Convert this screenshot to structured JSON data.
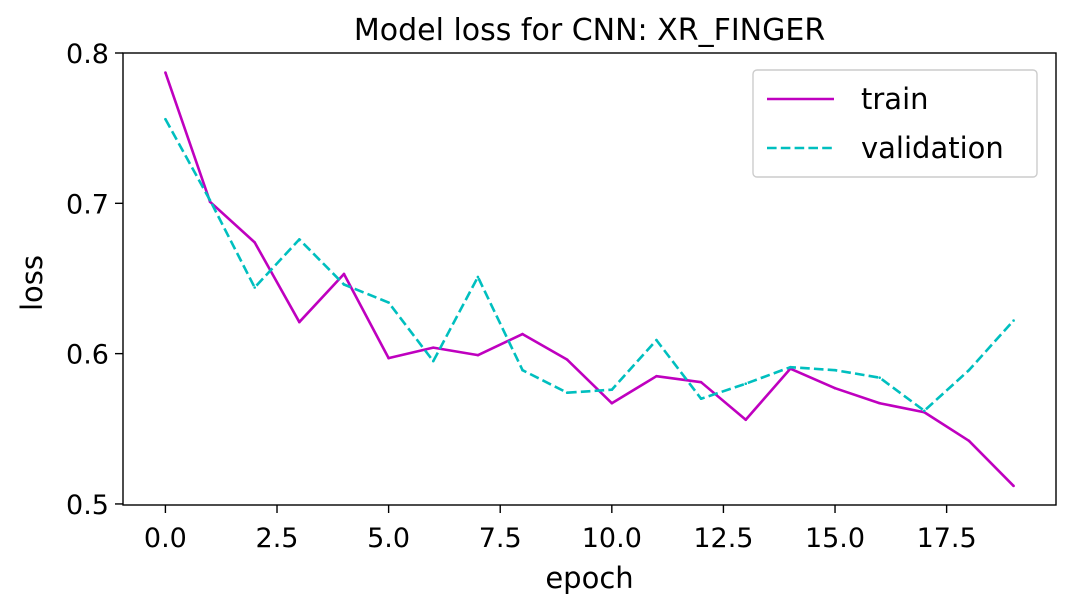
{
  "chart_data": {
    "type": "line",
    "title": "Model loss for CNN: XR_FINGER",
    "xlabel": "epoch",
    "ylabel": "loss",
    "xlim": [
      -0.95,
      19.95
    ],
    "ylim": [
      0.4993,
      0.8
    ],
    "x_ticks": [
      0,
      2.5,
      5,
      7.5,
      10,
      12.5,
      15,
      17.5
    ],
    "x_tick_labels": [
      "0.0",
      "2.5",
      "5.0",
      "7.5",
      "10.0",
      "12.5",
      "15.0",
      "17.5"
    ],
    "y_ticks": [
      0.5,
      0.6,
      0.7,
      0.8
    ],
    "y_tick_labels": [
      "0.5",
      "0.6",
      "0.7",
      "0.8"
    ],
    "grid": false,
    "legend_position": "top-right",
    "x": [
      0,
      1,
      2,
      3,
      4,
      5,
      6,
      7,
      8,
      9,
      10,
      11,
      12,
      13,
      14,
      15,
      16,
      17,
      18,
      19
    ],
    "series": [
      {
        "name": "train",
        "color": "#bf00bf",
        "dash": "solid",
        "values": [
          0.787,
          0.701,
          0.674,
          0.621,
          0.653,
          0.597,
          0.604,
          0.599,
          0.613,
          0.596,
          0.567,
          0.585,
          0.581,
          0.556,
          0.59,
          0.577,
          0.567,
          0.561,
          0.542,
          0.512
        ]
      },
      {
        "name": "validation",
        "color": "#00bfbf",
        "dash": "dashed",
        "values": [
          0.756,
          0.702,
          0.644,
          0.676,
          0.646,
          0.634,
          0.595,
          0.651,
          0.589,
          0.574,
          0.576,
          0.609,
          0.57,
          0.58,
          0.591,
          0.589,
          0.584,
          0.562,
          0.589,
          0.622
        ]
      }
    ]
  }
}
